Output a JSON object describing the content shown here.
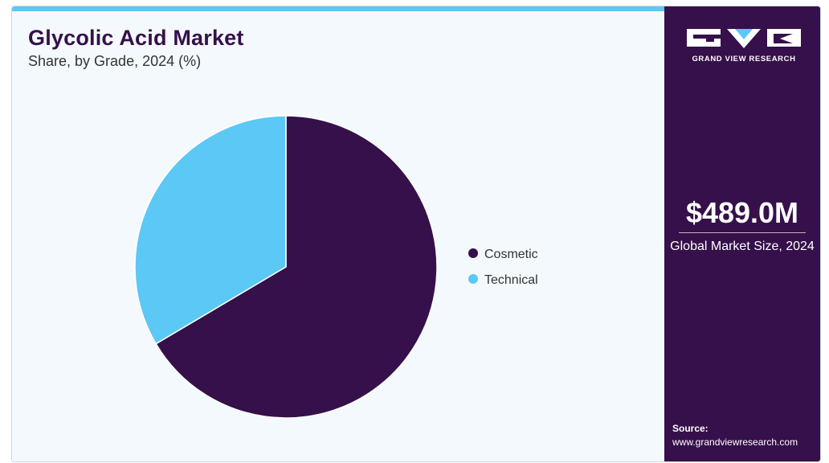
{
  "header": {
    "title": "Glycolic Acid Market",
    "subtitle": "Share, by Grade, 2024 (%)"
  },
  "colors": {
    "accent": "#5bc8f5",
    "brand_dark": "#35104a",
    "panel_bg": "#f4f9fd"
  },
  "chart_data": {
    "type": "pie",
    "title": "Glycolic Acid Market",
    "subtitle": "Share, by Grade, 2024 (%)",
    "legend_position": "right",
    "series": [
      {
        "name": "Cosmetic",
        "value": 66.5,
        "color": "#35104a"
      },
      {
        "name": "Technical",
        "value": 33.5,
        "color": "#5bc8f5"
      }
    ]
  },
  "sidebar": {
    "logo_text": "GRAND VIEW RESEARCH",
    "market_value": "$489.0M",
    "market_caption": "Global Market Size, 2024",
    "source_label": "Source:",
    "source_url": "www.grandviewresearch.com"
  }
}
